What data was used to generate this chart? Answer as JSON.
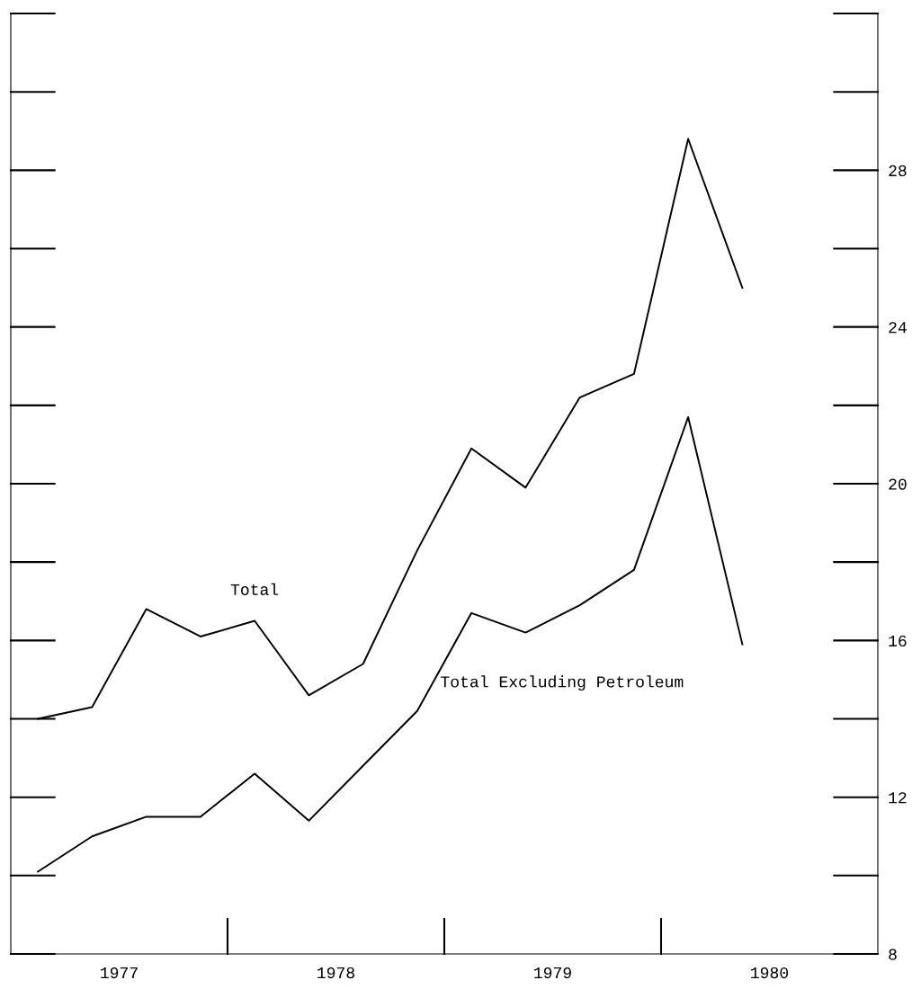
{
  "chart_data": {
    "type": "line",
    "x": [
      1977.125,
      1977.375,
      1977.625,
      1977.875,
      1978.125,
      1978.375,
      1978.625,
      1978.875,
      1979.125,
      1979.375,
      1979.625,
      1979.875,
      1980.125,
      1980.375
    ],
    "series": [
      {
        "name": "Total",
        "color": "#000000",
        "values": [
          14.0,
          14.3,
          16.8,
          16.1,
          16.5,
          14.6,
          15.4,
          18.3,
          20.9,
          19.9,
          22.2,
          22.8,
          28.8,
          25.0
        ]
      },
      {
        "name": "Total Excluding Petroleum",
        "color": "#000000",
        "values": [
          10.1,
          11.0,
          11.5,
          11.5,
          12.6,
          11.4,
          12.8,
          14.2,
          16.7,
          16.2,
          16.9,
          17.8,
          21.7,
          15.9
        ]
      }
    ],
    "xlim": [
      1977,
      1981
    ],
    "xticks": [
      {
        "value": 1977.5,
        "label": "1977"
      },
      {
        "value": 1978.5,
        "label": "1978"
      },
      {
        "value": 1979.5,
        "label": "1979"
      },
      {
        "value": 1980.5,
        "label": "1980"
      }
    ],
    "ylim": [
      8,
      32
    ],
    "yticks": [
      8,
      12,
      16,
      20,
      24,
      28
    ],
    "grid": false,
    "legend": false,
    "marker": "none",
    "line_style": "solid"
  }
}
